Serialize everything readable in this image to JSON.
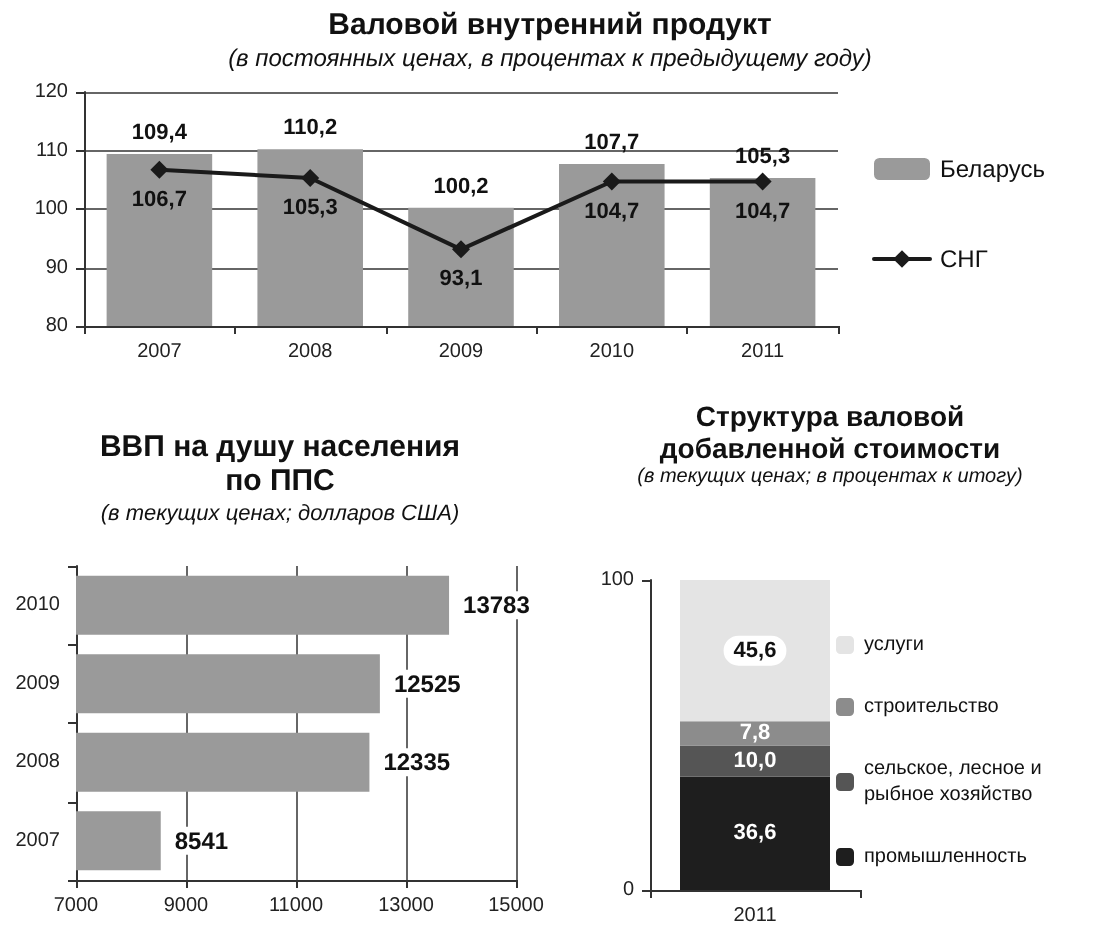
{
  "chart_data": [
    {
      "type": "bar",
      "title": "Валовой внутренний продукт",
      "subtitle": "(в постоянных ценах, в процентах к предыдущему году)",
      "categories": [
        "2007",
        "2008",
        "2009",
        "2010",
        "2011"
      ],
      "series": [
        {
          "name": "Беларусь",
          "color": "#9a9a9a",
          "values": [
            109.4,
            110.2,
            100.2,
            107.7,
            105.3
          ],
          "value_labels": [
            "109,4",
            "110,2",
            "100,2",
            "107,7",
            "105,3"
          ]
        },
        {
          "name": "СНГ",
          "type": "line",
          "color": "#1a1a1a",
          "values": [
            106.7,
            105.3,
            93.1,
            104.7,
            104.7
          ],
          "value_labels": [
            "106,7",
            "105,3",
            "93,1",
            "104,7",
            "104,7"
          ]
        }
      ],
      "ylim": [
        80,
        120
      ],
      "yticks": [
        80,
        90,
        100,
        110,
        120
      ],
      "grid": "y",
      "legend": "right",
      "marker": "diamond"
    },
    {
      "type": "bar",
      "orientation": "horizontal",
      "title": "ВВП на душу населения по ППС",
      "subtitle": "(в текущих ценах; долларов США)",
      "categories": [
        "2010",
        "2009",
        "2008",
        "2007"
      ],
      "values": [
        13783,
        12525,
        12335,
        8541
      ],
      "color": "#9a9a9a",
      "xlim": [
        7000,
        15000
      ],
      "xticks": [
        7000,
        9000,
        11000,
        13000,
        15000
      ],
      "grid": "x",
      "data_labels": true
    },
    {
      "type": "bar",
      "stacked": true,
      "title": "Структура валовой добавленной стоимости",
      "subtitle": "(в текущих ценах; в процентах к итогу)",
      "categories": [
        "2011"
      ],
      "series": [
        {
          "name": "промышленность",
          "color": "#1e1e1e",
          "values": [
            36.6
          ],
          "value_labels": [
            "36,6"
          ]
        },
        {
          "name": "сельское, лесное и рыбное хозяйство",
          "color": "#555555",
          "values": [
            10.0
          ],
          "value_labels": [
            "10,0"
          ]
        },
        {
          "name": "строительство",
          "color": "#8c8c8c",
          "values": [
            7.8
          ],
          "value_labels": [
            "7,8"
          ]
        },
        {
          "name": "услуги",
          "color": "#e4e4e4",
          "values": [
            45.6
          ],
          "value_labels": [
            "45,6"
          ]
        }
      ],
      "ylim": [
        0,
        100
      ],
      "yticks": [
        0,
        100
      ],
      "legend": "right"
    }
  ]
}
